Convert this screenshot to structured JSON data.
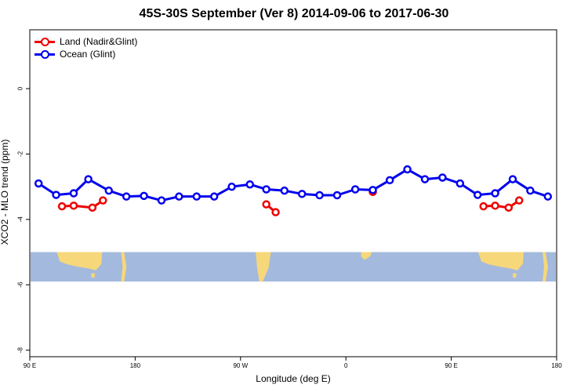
{
  "chart_data": {
    "type": "line",
    "title": "45S-30S September (Ver 8)   2014-09-06 to 2017-06-30",
    "xlabel": "Longitude (deg E)",
    "ylabel": "XCO2 - MLO trend (ppm)",
    "xlim": [
      90,
      540
    ],
    "ylim": [
      -8.2,
      1.8
    ],
    "x_ticks": [
      {
        "value": 90,
        "label": "90 E"
      },
      {
        "value": 180,
        "label": "180"
      },
      {
        "value": 270,
        "label": "90 W"
      },
      {
        "value": 360,
        "label": "0"
      },
      {
        "value": 450,
        "label": "90 E"
      },
      {
        "value": 540,
        "label": "180"
      }
    ],
    "y_ticks": [
      {
        "value": 0,
        "label": "0"
      },
      {
        "value": -2,
        "label": "-2"
      },
      {
        "value": -4,
        "label": "-4"
      },
      {
        "value": -6,
        "label": "-6"
      },
      {
        "value": -8,
        "label": "-8"
      }
    ],
    "legend_position": "top-left",
    "series": [
      {
        "name": "Land (Nadir&Glint)",
        "color": "#ee0000",
        "segments": [
          {
            "x": [
              117.5,
              127.5,
              143.5,
              152.5
            ],
            "y": [
              -3.6,
              -3.58,
              -3.64,
              -3.42
            ]
          },
          {
            "x": [
              292,
              300
            ],
            "y": [
              -3.54,
              -3.78
            ]
          },
          {
            "x": [
              383
            ],
            "y": [
              -3.16
            ]
          },
          {
            "x": [
              477.5,
              487.5,
              499,
              508
            ],
            "y": [
              -3.6,
              -3.58,
              -3.64,
              -3.42
            ]
          }
        ]
      },
      {
        "name": "Ocean (Glint)",
        "color": "#0000ee",
        "segments": [
          {
            "x": [
              97.5,
              112.5,
              127.5,
              140,
              157.5,
              172.5,
              187.5,
              202.5,
              217.5,
              232.5,
              247.5,
              262.5,
              278,
              292,
              307.5,
              322.5,
              337.5,
              352.5,
              368,
              383,
              397.5,
              412.5,
              427.5,
              442.5,
              457.5,
              472.5,
              487.5,
              502.5,
              517.5,
              532.5
            ],
            "y": [
              -2.9,
              -3.25,
              -3.2,
              -2.77,
              -3.12,
              -3.3,
              -3.28,
              -3.42,
              -3.3,
              -3.3,
              -3.3,
              -3.0,
              -2.93,
              -3.08,
              -3.12,
              -3.22,
              -3.26,
              -3.26,
              -3.08,
              -3.1,
              -2.8,
              -2.47,
              -2.77,
              -2.72,
              -2.9,
              -3.25,
              -3.2,
              -2.77,
              -3.12,
              -3.3
            ]
          }
        ]
      }
    ],
    "background_band": {
      "y_range": [
        -5.0,
        -5.9
      ],
      "description_colors": {
        "ocean": "#a3b9dd",
        "land": "#f6d77a"
      }
    }
  }
}
